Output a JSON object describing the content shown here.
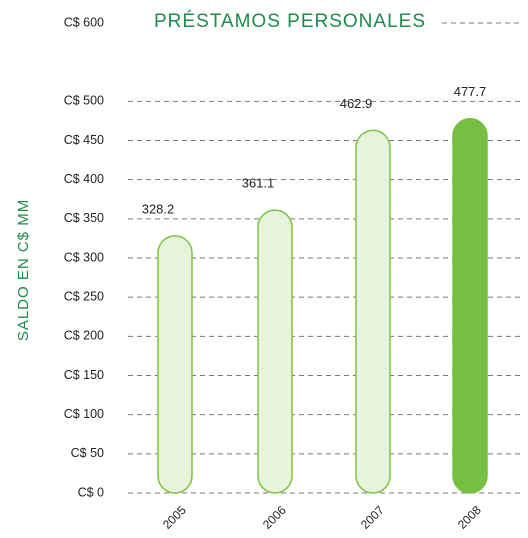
{
  "chart_data": {
    "type": "bar",
    "title": "PRÉSTAMOS PERSONALES",
    "y_label": "SALDO EN C$ MM",
    "categories": [
      "2005",
      "2006",
      "2007",
      "2008"
    ],
    "values": [
      328.2,
      361.1,
      462.9,
      477.7
    ],
    "colors": [
      "#e8f3dc",
      "#e8f3dc",
      "#e8f3dc",
      "#76bf43"
    ],
    "ylim": [
      0,
      600
    ],
    "yticks": [
      {
        "value": 0,
        "label": "C$ 0"
      },
      {
        "value": 50,
        "label": "C$ 50"
      },
      {
        "value": 100,
        "label": "C$ 100"
      },
      {
        "value": 150,
        "label": "C$ 150"
      },
      {
        "value": 200,
        "label": "C$ 200"
      },
      {
        "value": 250,
        "label": "C$ 250"
      },
      {
        "value": 300,
        "label": "C$ 300"
      },
      {
        "value": 350,
        "label": "C$ 350"
      },
      {
        "value": 400,
        "label": "C$ 400"
      },
      {
        "value": 450,
        "label": "C$ 450"
      },
      {
        "value": 500,
        "label": "C$ 500"
      },
      {
        "value": 600,
        "label": "C$ 600"
      }
    ],
    "grid": true
  }
}
